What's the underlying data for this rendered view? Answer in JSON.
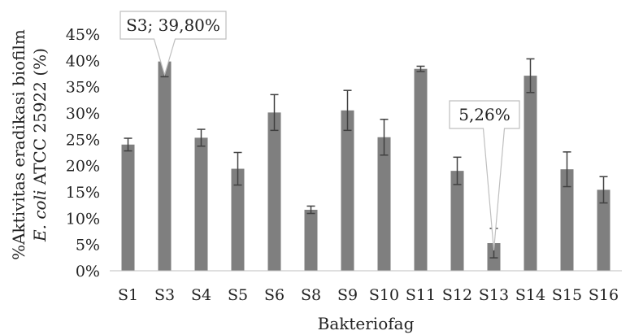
{
  "chart_data": {
    "type": "bar",
    "categories": [
      "S1",
      "S3",
      "S4",
      "S5",
      "S6",
      "S8",
      "S9",
      "S10",
      "S11",
      "S12",
      "S13",
      "S14",
      "S15",
      "S16"
    ],
    "series": [
      {
        "values": [
          24.0,
          39.8,
          25.3,
          19.4,
          30.1,
          11.6,
          30.5,
          25.4,
          38.4,
          19.0,
          5.26,
          37.1,
          19.3,
          15.4
        ],
        "error": [
          1.2,
          2.9,
          1.6,
          3.1,
          3.4,
          0.7,
          3.8,
          3.4,
          0.5,
          2.6,
          2.8,
          3.2,
          3.3,
          2.5
        ]
      }
    ],
    "ylim": [
      0,
      45
    ],
    "yticks": [
      "0%",
      "5%",
      "10%",
      "15%",
      "20%",
      "25%",
      "30%",
      "35%",
      "40%",
      "45%"
    ],
    "xlabel": "Bakteriofag",
    "ylabel_line1": "%Aktivitas eradikasi biofilm",
    "ylabel_line2_italic": "E. coli",
    "ylabel_line2_rest": " ATCC 25922 (%)",
    "bar_color": "#7f7f7f",
    "grid": false,
    "annotations": [
      {
        "category": "S3",
        "text": "S3; 39,80%"
      },
      {
        "category": "S13",
        "text": "5,26%"
      }
    ]
  }
}
